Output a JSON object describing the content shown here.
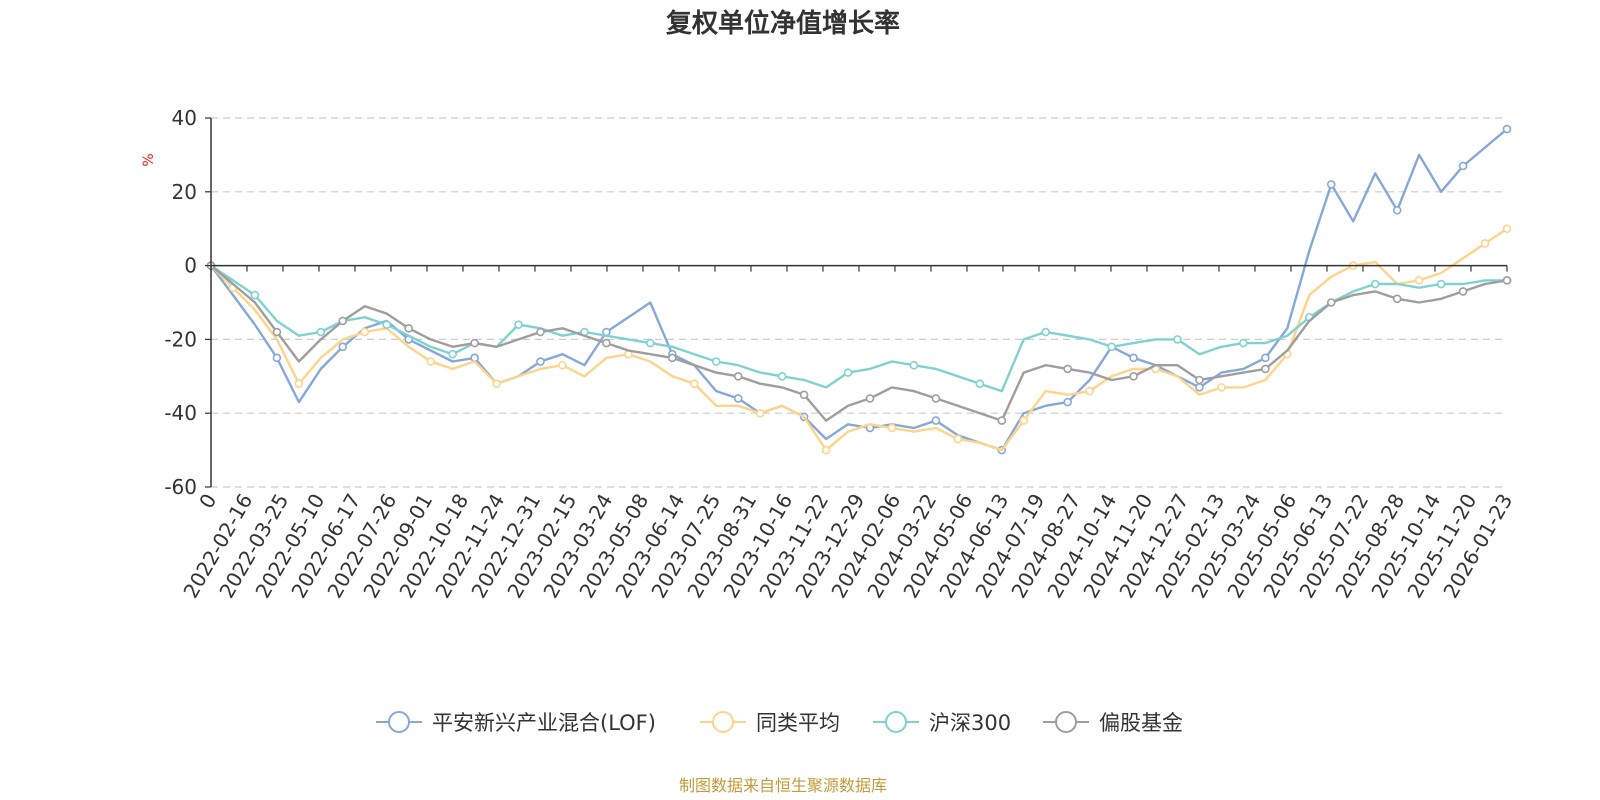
{
  "chart_data": {
    "type": "line",
    "title": "复权单位净值增长率",
    "ylabel": "%",
    "ylim": [
      -60,
      40
    ],
    "yticks": [
      40,
      20,
      0,
      -20,
      -40,
      -60
    ],
    "grid": "horizontal dashed",
    "legend_position": "bottom",
    "x_tick_labels": [
      "0",
      "2022-02-16",
      "2022-03-25",
      "2022-05-10",
      "2022-06-17",
      "2022-07-26",
      "2022-09-01",
      "2022-10-18",
      "2022-11-24",
      "2022-12-31",
      "2023-02-15",
      "2023-03-24",
      "2023-05-08",
      "2023-06-14",
      "2023-07-25",
      "2023-08-31",
      "2023-10-16",
      "2023-11-22",
      "2023-12-29",
      "2024-02-06",
      "2024-03-22",
      "2024-05-06",
      "2024-06-13",
      "2024-07-19",
      "2024-08-27",
      "2024-10-14",
      "2024-11-20",
      "2024-12-27",
      "2025-02-13",
      "2025-03-24",
      "2025-05-06",
      "2025-06-13",
      "2025-07-22",
      "2025-08-28",
      "2025-10-14",
      "2025-11-20",
      "2026-01-23"
    ],
    "series": [
      {
        "name": "平安新兴产业混合(LOF)",
        "color": "#86a8d8",
        "values": [
          0,
          -8,
          -16,
          -25,
          -37,
          -28,
          -22,
          -17,
          -15,
          -20,
          -23,
          -26,
          -25,
          -32,
          -30,
          -26,
          -24,
          -27,
          -18,
          -14,
          -10,
          -24,
          -27,
          -34,
          -36,
          -40,
          -38,
          -41,
          -47,
          -43,
          -44,
          -43,
          -44,
          -42,
          -46,
          -48,
          -50,
          -40,
          -38,
          -37,
          -31,
          -22,
          -25,
          -27,
          -30,
          -33,
          -29,
          -28,
          -25,
          -17,
          4,
          22,
          12,
          25,
          15,
          30,
          20,
          27,
          32,
          37
        ]
      },
      {
        "name": "同类平均",
        "color": "#fdd48a",
        "values": [
          0,
          -6,
          -12,
          -20,
          -32,
          -25,
          -20,
          -18,
          -17,
          -22,
          -26,
          -28,
          -26,
          -32,
          -30,
          -28,
          -27,
          -30,
          -25,
          -24,
          -26,
          -30,
          -32,
          -38,
          -38,
          -40,
          -38,
          -41,
          -50,
          -45,
          -43,
          -44,
          -45,
          -44,
          -47,
          -48,
          -50,
          -42,
          -34,
          -35,
          -34,
          -30,
          -28,
          -28,
          -30,
          -35,
          -33,
          -33,
          -31,
          -24,
          -8,
          -3,
          0,
          1,
          -5,
          -4,
          -2,
          2,
          6,
          10
        ]
      },
      {
        "name": "沪深300",
        "color": "#7fd1d3",
        "values": [
          0,
          -4,
          -8,
          -15,
          -19,
          -18,
          -15,
          -14,
          -16,
          -19,
          -22,
          -24,
          -21,
          -22,
          -16,
          -17,
          -19,
          -18,
          -19,
          -20,
          -21,
          -22,
          -24,
          -26,
          -27,
          -29,
          -30,
          -31,
          -33,
          -29,
          -28,
          -26,
          -27,
          -28,
          -30,
          -32,
          -34,
          -20,
          -18,
          -19,
          -20,
          -22,
          -21,
          -20,
          -20,
          -24,
          -22,
          -21,
          -21,
          -19,
          -14,
          -10,
          -7,
          -5,
          -5,
          -6,
          -5,
          -5,
          -4,
          -4
        ]
      },
      {
        "name": "偏股基金",
        "color": "#9e9e9e",
        "values": [
          0,
          -5,
          -10,
          -18,
          -26,
          -20,
          -15,
          -11,
          -13,
          -17,
          -20,
          -22,
          -21,
          -22,
          -20,
          -18,
          -17,
          -19,
          -21,
          -23,
          -24,
          -25,
          -27,
          -29,
          -30,
          -32,
          -33,
          -35,
          -42,
          -38,
          -36,
          -33,
          -34,
          -36,
          -38,
          -40,
          -42,
          -29,
          -27,
          -28,
          -29,
          -31,
          -30,
          -27,
          -27,
          -31,
          -30,
          -29,
          -28,
          -23,
          -15,
          -10,
          -8,
          -7,
          -9,
          -10,
          -9,
          -7,
          -5,
          -4
        ]
      }
    ]
  },
  "source": "制图数据来自恒生聚源数据库",
  "colors": {
    "axis": "#333333",
    "grid": "#cccccc",
    "ylabel": "#e02020",
    "source": "#c59a3a"
  }
}
